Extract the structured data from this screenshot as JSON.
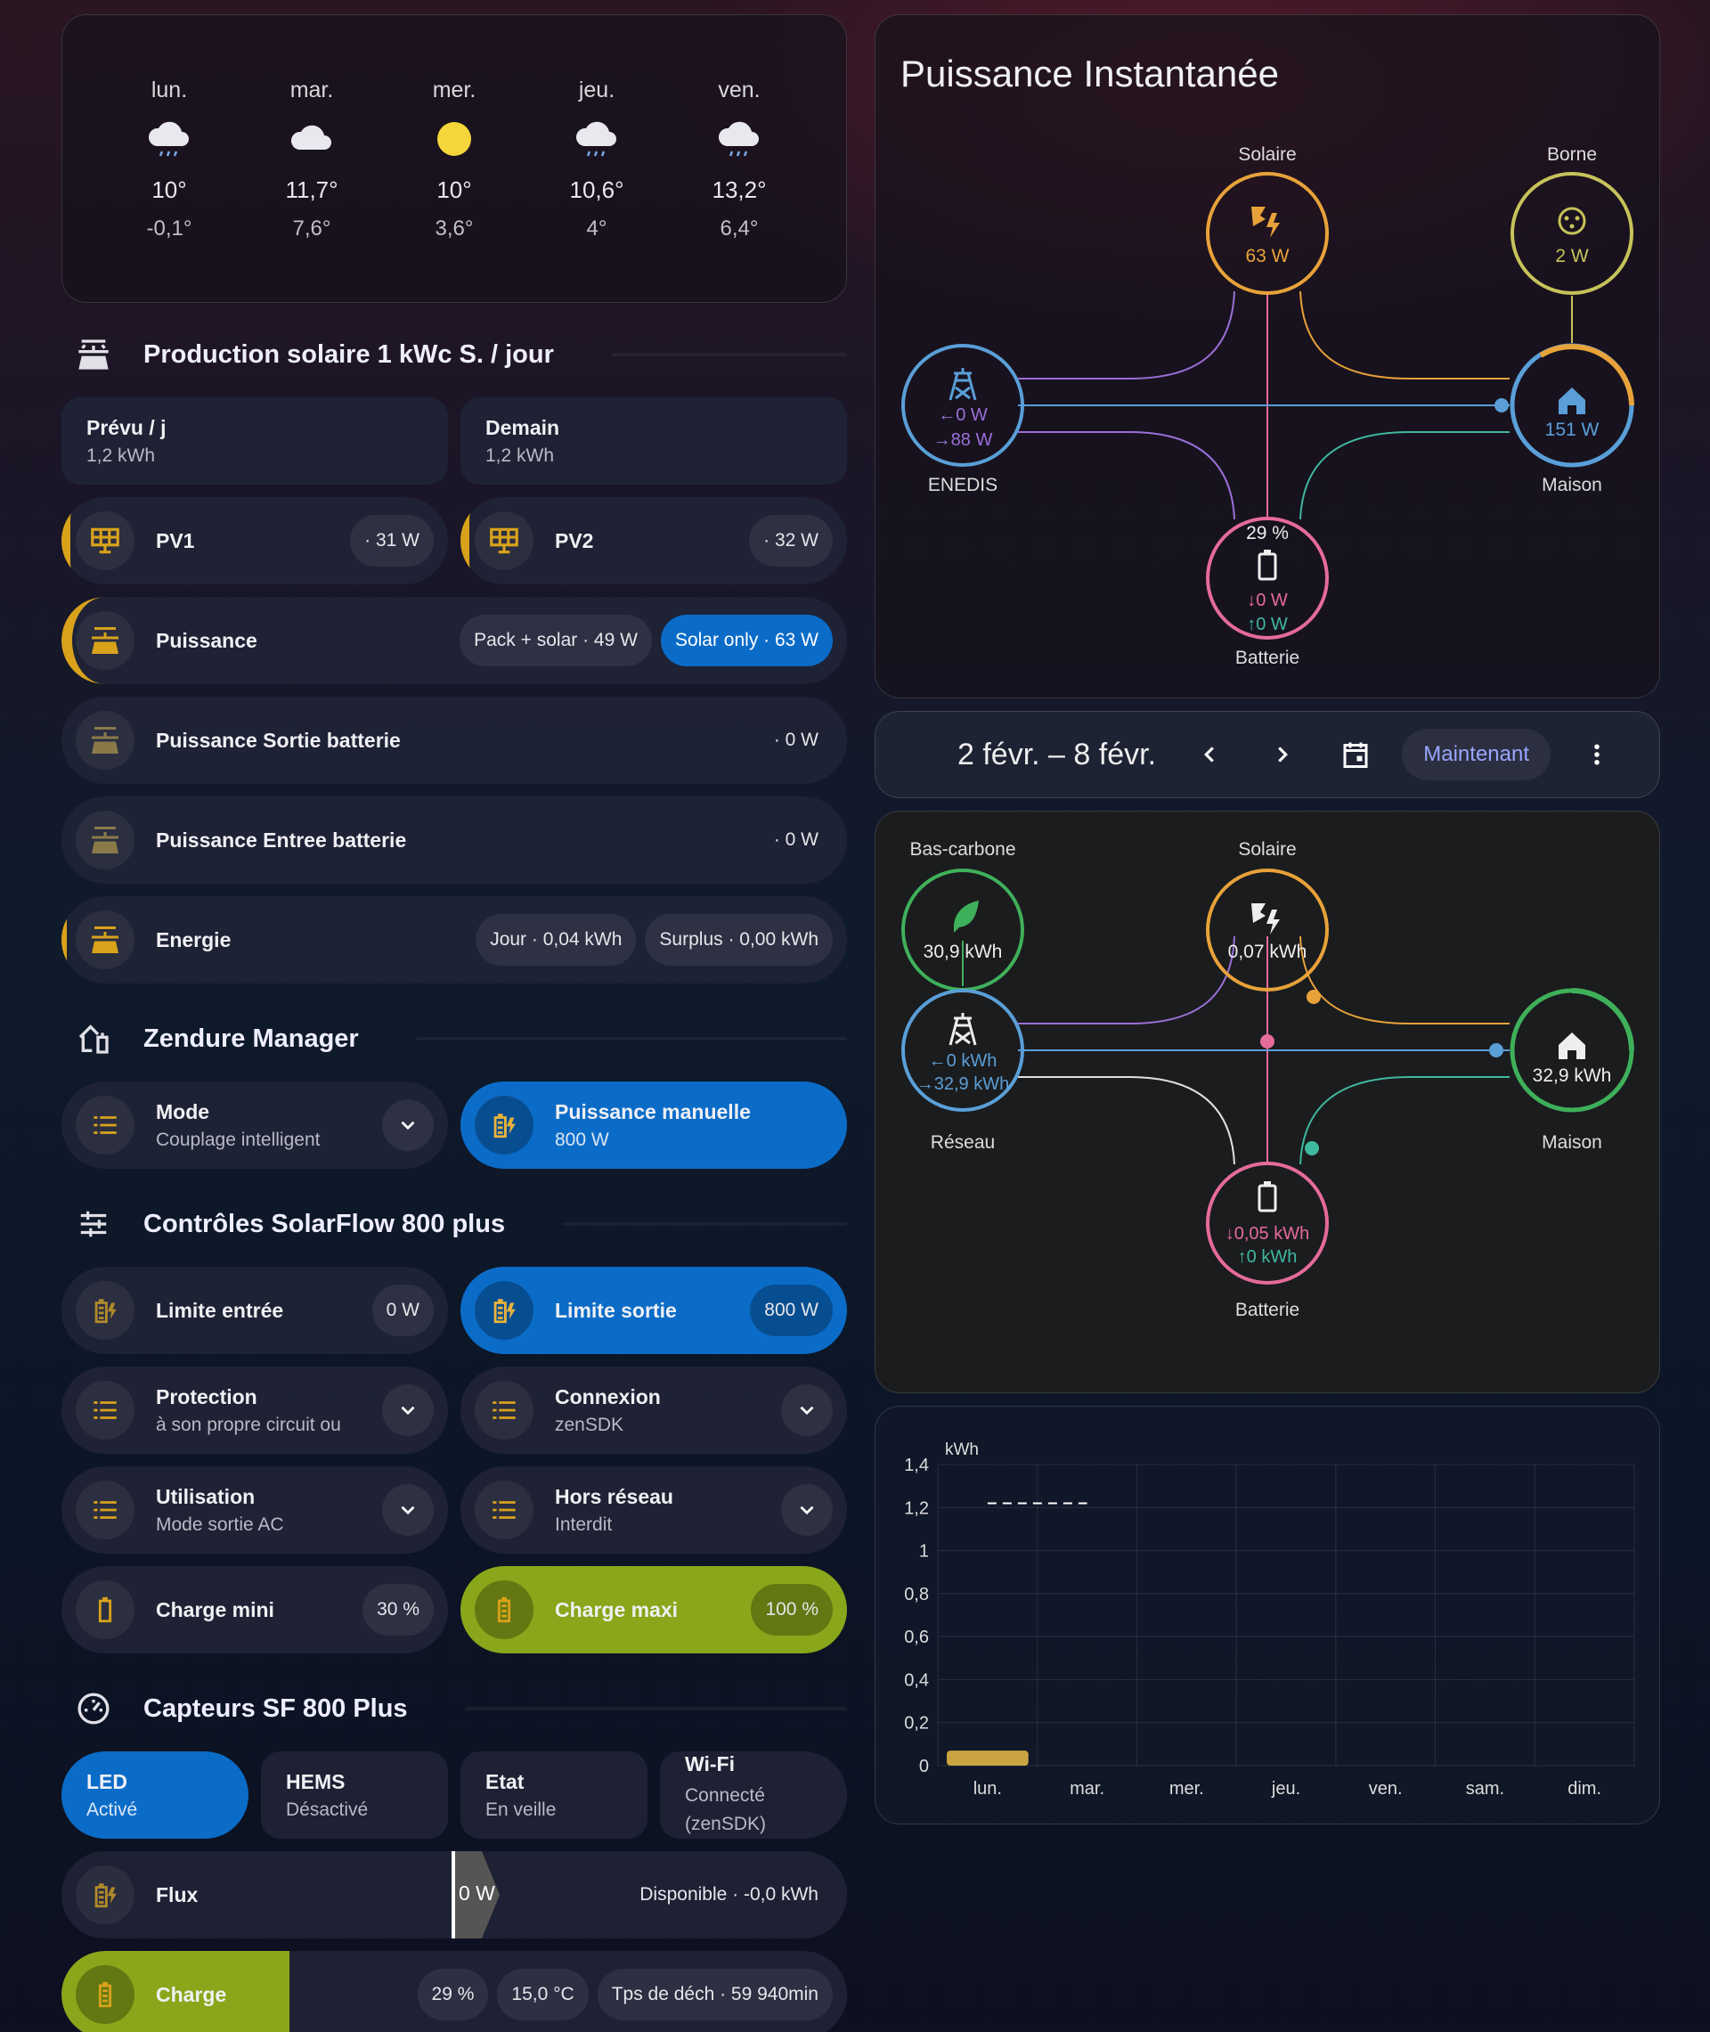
{
  "weather": [
    {
      "day": "lun.",
      "icon": "cloud-rain-icon",
      "high": "10°",
      "low": "-0,1°"
    },
    {
      "day": "mar.",
      "icon": "cloud-icon",
      "high": "11,7°",
      "low": "7,6°"
    },
    {
      "day": "mer.",
      "icon": "sun-icon",
      "high": "10°",
      "low": "3,6°"
    },
    {
      "day": "jeu.",
      "icon": "cloud-rain-icon",
      "high": "10,6°",
      "low": "4°"
    },
    {
      "day": "ven.",
      "icon": "cloud-rain-icon",
      "high": "13,2°",
      "low": "6,4°"
    }
  ],
  "solar_section": {
    "title": "Production solaire 1 kWc S. / jour"
  },
  "forecast": {
    "today_label": "Prévu / j",
    "today_value": "1,2 kWh",
    "tomorrow_label": "Demain",
    "tomorrow_value": "1,2 kWh"
  },
  "pv1": {
    "label": "PV1",
    "value": "· 31 W"
  },
  "pv2": {
    "label": "PV2",
    "value": "· 32 W"
  },
  "puissance": {
    "label": "Puissance",
    "badge1": "Pack + solar · 49 W",
    "badge2": "Solar only · 63 W"
  },
  "sortie_batterie": {
    "label": "Puissance Sortie batterie",
    "value": "· 0 W"
  },
  "entree_batterie": {
    "label": "Puissance Entree batterie",
    "value": "· 0 W"
  },
  "energie": {
    "label": "Energie",
    "badge1": "Jour · 0,04 kWh",
    "badge2": "Surplus · 0,00 kWh"
  },
  "zendure": {
    "title": "Zendure Manager"
  },
  "mode": {
    "label": "Mode",
    "value": "Couplage intelligent"
  },
  "manuelle": {
    "label": "Puissance manuelle",
    "value": "800 W"
  },
  "controls": {
    "title": "Contrôles SolarFlow 800 plus"
  },
  "limite_entree": {
    "label": "Limite entrée",
    "value": "0 W"
  },
  "limite_sortie": {
    "label": "Limite sortie",
    "value": "800 W"
  },
  "protection": {
    "label": "Protection",
    "value": "à son propre circuit ou"
  },
  "connexion": {
    "label": "Connexion",
    "value": "zenSDK"
  },
  "utilisation": {
    "label": "Utilisation",
    "value": "Mode sortie AC"
  },
  "hors_reseau": {
    "label": "Hors réseau",
    "value": "Interdit"
  },
  "charge_mini": {
    "label": "Charge mini",
    "value": "30 %"
  },
  "charge_maxi": {
    "label": "Charge maxi",
    "value": "100 %"
  },
  "sensors": {
    "title": "Capteurs SF 800 Plus"
  },
  "led": {
    "label": "LED",
    "value": "Activé"
  },
  "hems": {
    "label": "HEMS",
    "value": "Désactivé"
  },
  "etat": {
    "label": "Etat",
    "value": "En veille"
  },
  "wifi": {
    "label": "Wi-Fi",
    "value": "Connecté (zenSDK)"
  },
  "flux": {
    "label": "Flux",
    "value": "0 W",
    "badge": "Disponible · -0,0 kWh"
  },
  "charge": {
    "label": "Charge",
    "fill_percent": 29,
    "percent": "29 %",
    "temp": "15,0 °C",
    "discharge": "Tps de déch · 59 940min"
  },
  "instant": {
    "title": "Puissance Instantanée",
    "solar_label": "Solaire",
    "solar_value": "63 W",
    "borne_label": "Borne",
    "borne_value": "2 W",
    "grid_label": "ENEDIS",
    "grid_in": "0 W",
    "grid_out": "88 W",
    "home_label": "Maison",
    "home_value": "151 W",
    "battery_label": "Batterie",
    "battery_pct": "29 %",
    "battery_in": "0 W",
    "battery_out": "0 W"
  },
  "period": {
    "range": "2 févr. – 8 févr.",
    "now_label": "Maintenant"
  },
  "energy_flow": {
    "lowcarbon_label": "Bas-carbone",
    "lowcarbon_value": "30,9 kWh",
    "solar_label": "Solaire",
    "solar_value": "0,07 kWh",
    "grid_label": "Réseau",
    "grid_in": "0 kWh",
    "grid_out": "32,9 kWh",
    "home_label": "Maison",
    "home_value": "32,9 kWh",
    "battery_label": "Batterie",
    "battery_in": "0,05 kWh",
    "battery_out": "0 kWh"
  },
  "chart_data": {
    "type": "bar",
    "ylabel": "kWh",
    "categories": [
      "lun.",
      "mar.",
      "mer.",
      "jeu.",
      "ven.",
      "sam.",
      "dim."
    ],
    "yticks": [
      "0",
      "0,2",
      "0,4",
      "0,6",
      "0,8",
      "1",
      "1,2",
      "1,4"
    ],
    "ylim": [
      0,
      1.4
    ],
    "series": [
      {
        "values": [
          0.07,
          0,
          0,
          0,
          0,
          0,
          0
        ],
        "color": "#c9a441"
      },
      {
        "values": [
          1.22,
          1.22,
          null,
          null,
          null,
          null,
          null
        ],
        "style": "dashed",
        "color": "#ffffff"
      }
    ]
  }
}
